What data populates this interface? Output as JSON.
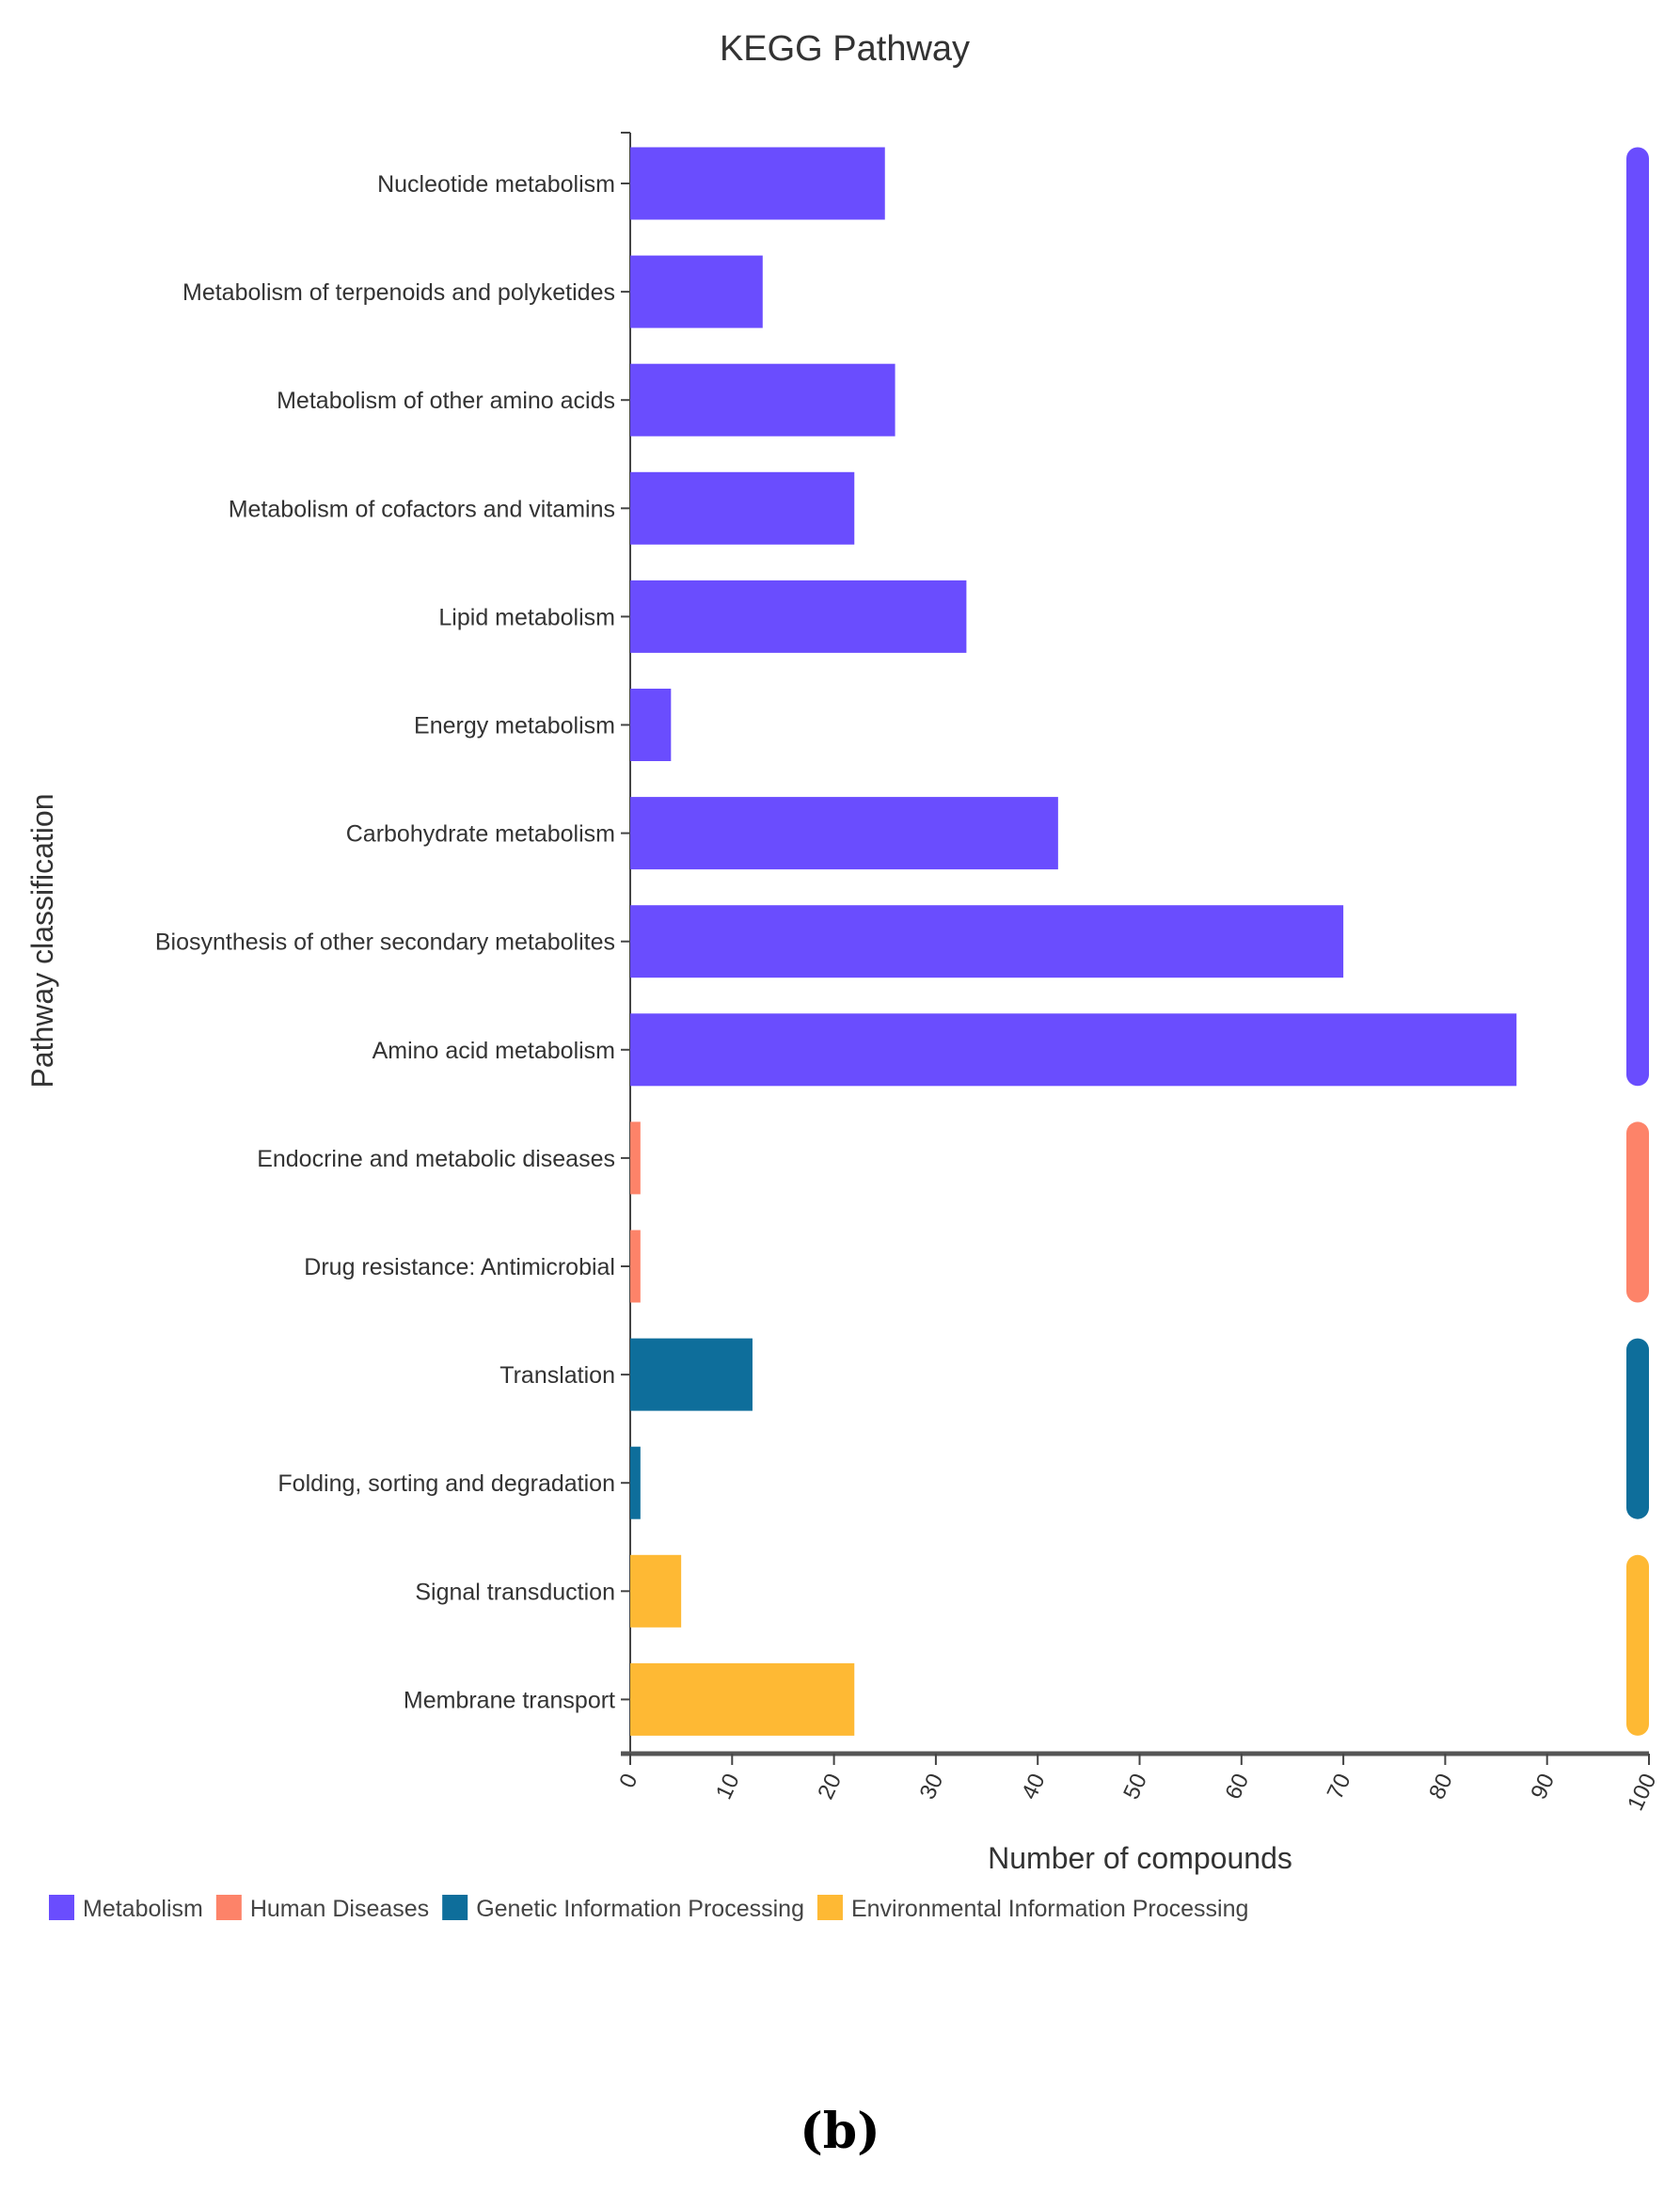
{
  "chart_data": {
    "type": "bar",
    "orientation": "horizontal",
    "title": "KEGG Pathway",
    "xlabel": "Number of compounds",
    "ylabel": "Pathway classification",
    "xlim": [
      0,
      100
    ],
    "xticks": [
      0,
      10,
      20,
      30,
      40,
      50,
      60,
      70,
      80,
      90,
      100
    ],
    "grid": false,
    "legend_position": "bottom-left",
    "groups": [
      {
        "name": "Metabolism",
        "color": "#6a4dfe"
      },
      {
        "name": "Human Diseases",
        "color": "#fd8369"
      },
      {
        "name": "Genetic Information Processing",
        "color": "#0e6e9b"
      },
      {
        "name": "Environmental Information Processing",
        "color": "#feb934"
      }
    ],
    "categories": [
      "Nucleotide metabolism",
      "Metabolism of terpenoids and polyketides",
      "Metabolism of other amino acids",
      "Metabolism of cofactors and vitamins",
      "Lipid metabolism",
      "Energy metabolism",
      "Carbohydrate metabolism",
      "Biosynthesis of other secondary metabolites",
      "Amino acid metabolism",
      "Endocrine and metabolic diseases",
      "Drug resistance: Antimicrobial",
      "Translation",
      "Folding, sorting and degradation",
      "Signal transduction",
      "Membrane transport"
    ],
    "values": [
      25,
      13,
      26,
      22,
      33,
      4,
      42,
      70,
      87,
      1,
      1,
      12,
      1,
      5,
      22
    ],
    "group_of": [
      0,
      0,
      0,
      0,
      0,
      0,
      0,
      0,
      0,
      1,
      1,
      2,
      2,
      3,
      3
    ]
  },
  "caption": "(b)"
}
